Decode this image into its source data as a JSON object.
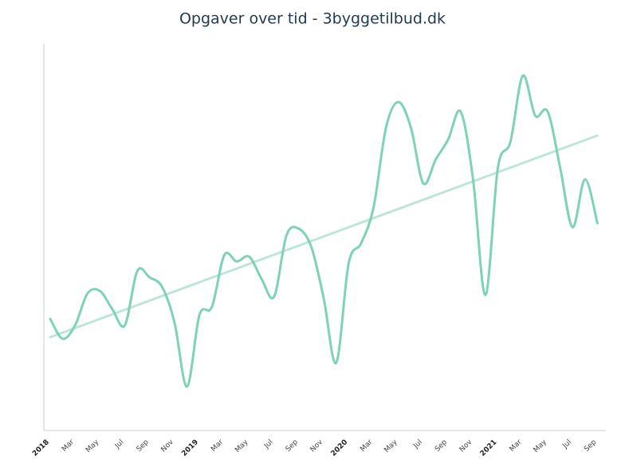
{
  "chart_data": {
    "type": "line",
    "title": "Opgaver over tid - 3byggetilbud.dk",
    "categories": [
      "2018",
      null,
      "Mar",
      null,
      "May",
      null,
      "Jul",
      null,
      "Sep",
      null,
      "Nov",
      null,
      "2019",
      null,
      "Mar",
      null,
      "May",
      null,
      "Jul",
      null,
      "Sep",
      null,
      "Nov",
      null,
      "2020",
      null,
      "Mar",
      null,
      "May",
      null,
      "Jul",
      null,
      "Sep",
      null,
      "Nov",
      null,
      "2021",
      null,
      "Mar",
      null,
      "May",
      null,
      "Jul",
      null,
      "Sep"
    ],
    "values": [
      140,
      115,
      132,
      172,
      175,
      152,
      132,
      200,
      192,
      180,
      135,
      55,
      145,
      155,
      220,
      212,
      218,
      190,
      168,
      245,
      253,
      230,
      165,
      85,
      210,
      235,
      280,
      380,
      412,
      380,
      310,
      340,
      365,
      400,
      315,
      170,
      330,
      362,
      445,
      395,
      400,
      330,
      255,
      315,
      260
    ],
    "color": "#7dd3b4",
    "trend": {
      "color": "#bde6d5",
      "start": 117,
      "end": 370
    },
    "ylim": [
      0,
      500
    ]
  }
}
